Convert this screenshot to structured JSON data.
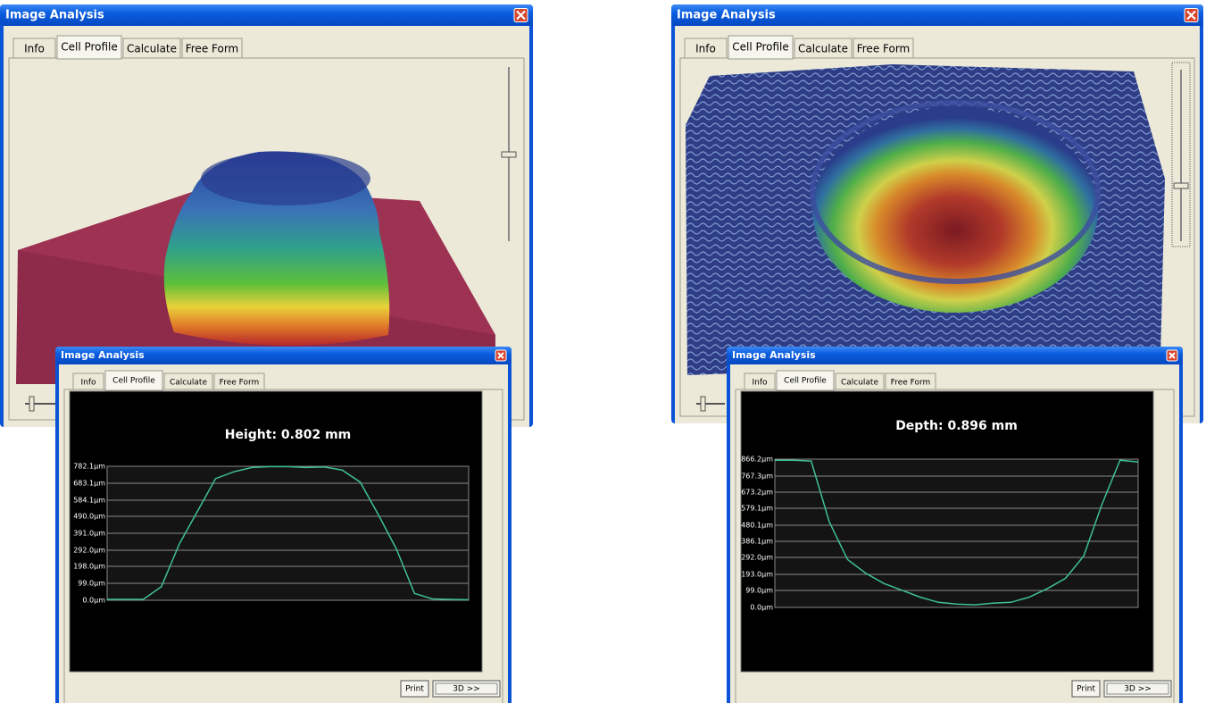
{
  "windows": [
    {
      "title": "Image Analysis",
      "tabs": [
        "Info",
        "Cell Profile",
        "Calculate",
        "Free Form"
      ]
    },
    {
      "title": "Image Analysis",
      "tabs": [
        "Info",
        "Cell Profile",
        "Calculate",
        "Free Form"
      ],
      "buttons": [
        "Print",
        "3D >>"
      ]
    },
    {
      "title": "Image Analysis",
      "tabs": [
        "Info",
        "Cell Profile",
        "Calculate",
        "Free Form"
      ]
    },
    {
      "title": "Image Analysis",
      "tabs": [
        "Info",
        "Cell Profile",
        "Calculate",
        "Free Form"
      ],
      "buttons": [
        "Print",
        "3D >>"
      ]
    }
  ],
  "chart_data": [
    {
      "type": "line",
      "title": "Height: 0.802 mm",
      "color": "#3fbf9a",
      "grid": true,
      "categories": [
        null,
        null,
        null,
        null,
        null,
        null,
        null,
        null,
        null,
        null,
        null,
        null,
        null,
        null,
        null,
        null,
        null,
        null,
        null,
        null,
        null
      ],
      "values": [
        5,
        5,
        5,
        80,
        330,
        520,
        710,
        750,
        775,
        780,
        780,
        775,
        778,
        760,
        690,
        500,
        300,
        40,
        8,
        5,
        3
      ],
      "ylim": [
        0,
        782.1
      ],
      "yticks": [
        {
          "value": 0,
          "label": "0.0µm"
        },
        {
          "value": 99,
          "label": "99.0µm"
        },
        {
          "value": 198,
          "label": "198.0µm"
        },
        {
          "value": 292,
          "label": "292.0µm"
        },
        {
          "value": 391,
          "label": "391.0µm"
        },
        {
          "value": 490,
          "label": "490.0µm"
        },
        {
          "value": 584.1,
          "label": "584.1µm"
        },
        {
          "value": 683.1,
          "label": "683.1µm"
        },
        {
          "value": 782.1,
          "label": "782.1µm"
        }
      ]
    },
    {
      "type": "line",
      "title": "Depth: 0.896 mm",
      "color": "#3fbf9a",
      "grid": true,
      "categories": [
        null,
        null,
        null,
        null,
        null,
        null,
        null,
        null,
        null,
        null,
        null,
        null,
        null,
        null,
        null,
        null,
        null,
        null,
        null,
        null,
        null
      ],
      "values": [
        860,
        860,
        855,
        500,
        280,
        200,
        140,
        100,
        60,
        30,
        20,
        15,
        25,
        30,
        60,
        110,
        170,
        300,
        600,
        860,
        850
      ],
      "ylim": [
        0,
        866.2
      ],
      "yticks": [
        {
          "value": 0,
          "label": "0.0µm"
        },
        {
          "value": 99,
          "label": "99.0µm"
        },
        {
          "value": 193,
          "label": "193.0µm"
        },
        {
          "value": 292,
          "label": "292.0µm"
        },
        {
          "value": 386.1,
          "label": "386.1µm"
        },
        {
          "value": 480.1,
          "label": "480.1µm"
        },
        {
          "value": 579.1,
          "label": "579.1µm"
        },
        {
          "value": 673.2,
          "label": "673.2µm"
        },
        {
          "value": 767.3,
          "label": "767.3µm"
        },
        {
          "value": 866.2,
          "label": "866.2µm"
        }
      ]
    }
  ]
}
